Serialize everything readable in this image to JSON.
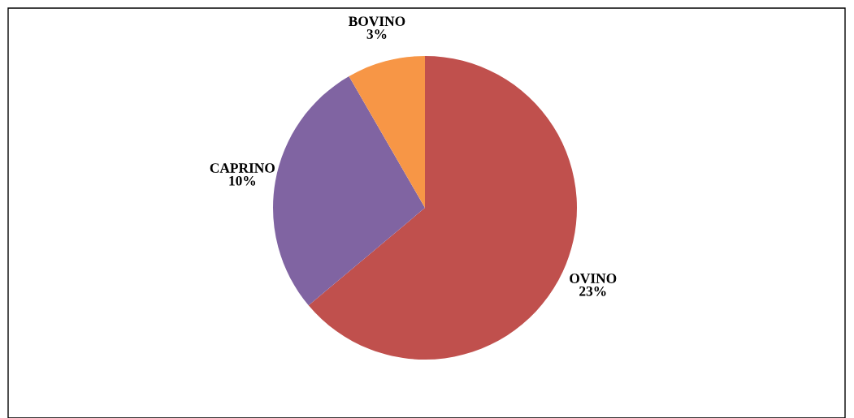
{
  "chart_data": {
    "type": "pie",
    "categories": [
      "OVINO",
      "CAPRINO",
      "BOVINO"
    ],
    "values": [
      23,
      10,
      3
    ],
    "colors": [
      "#c0504d",
      "#8064a2",
      "#f79646"
    ],
    "value_labels": [
      "23%",
      "10%",
      "3%"
    ],
    "legend": false
  }
}
